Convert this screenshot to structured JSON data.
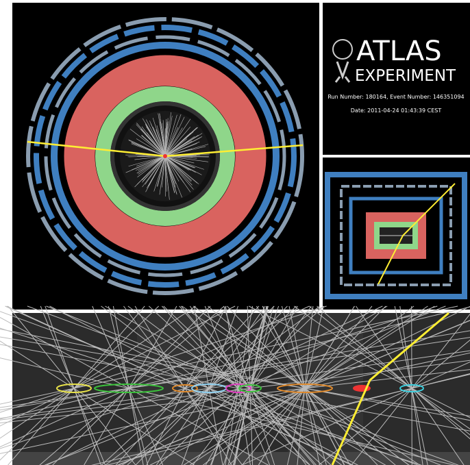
{
  "header": {
    "title": "ATLAS",
    "subtitle": "EXPERIMENT"
  },
  "event": {
    "run_line": "Run Number: 180164, Event Number: 146351094",
    "date_line": "Date: 2011-04-24 01:43:39 CEST"
  }
}
